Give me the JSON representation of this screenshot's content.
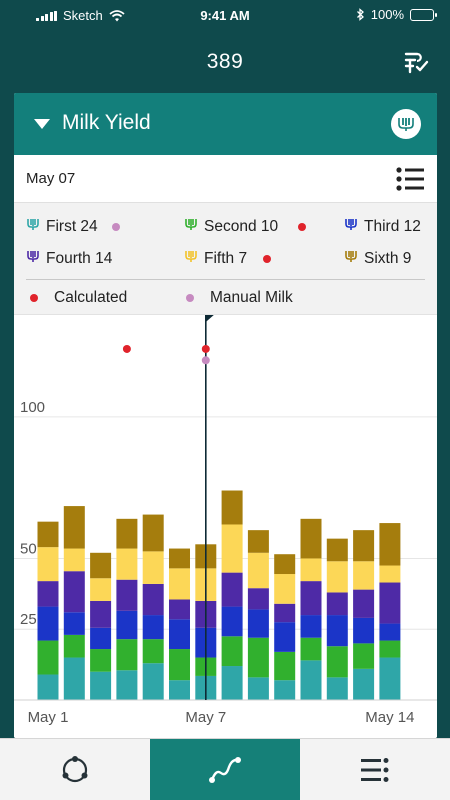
{
  "status_bar": {
    "carrier": "Sketch",
    "time": "9:41 AM",
    "battery": "100%"
  },
  "header": {
    "title": "389",
    "action_icon": "checklist-icon"
  },
  "card": {
    "title": "Milk Yield",
    "date": "May 07",
    "badge_icon": "milk-gauge-icon"
  },
  "legend": {
    "items": [
      {
        "label": "First 24",
        "color": "#2fa6a8",
        "dot_color": "#c68ac0"
      },
      {
        "label": "Second 10",
        "color": "#31b02e",
        "dot_color": "#e0232b"
      },
      {
        "label": "Third 12",
        "color": "#1b35c8"
      },
      {
        "label": "Fourth 14",
        "color": "#4e2aa6"
      },
      {
        "label": "Fifth 7",
        "color": "#fcd757",
        "dot_color": "#e0232b"
      },
      {
        "label": "Sixth 9",
        "color": "#a57d0d"
      }
    ],
    "calculated": {
      "label": "Calculated",
      "color": "#e0232b"
    },
    "manual": {
      "label": "Manual Milk",
      "color": "#c68ac0"
    }
  },
  "chart_data": {
    "type": "bar",
    "stacked": true,
    "ylim": [
      0,
      136
    ],
    "yticks": [
      25,
      50,
      100
    ],
    "ytick_labels": [
      "25",
      "50",
      "100"
    ],
    "xtick_labels": [
      "May 1",
      "May 7",
      "May 14"
    ],
    "xtick_positions": [
      0,
      6,
      13
    ],
    "selected_index": 6,
    "series": [
      {
        "name": "First",
        "color": "#2fa6a8",
        "values": [
          9,
          15,
          10,
          10.5,
          13,
          7,
          8.5,
          12,
          8,
          7,
          14,
          8,
          11,
          15
        ]
      },
      {
        "name": "Second",
        "color": "#31b02e",
        "values": [
          12,
          8,
          8,
          11,
          8.5,
          11,
          6.5,
          10.5,
          14,
          10,
          8,
          11,
          9,
          6
        ]
      },
      {
        "name": "Third",
        "color": "#1b35c8",
        "values": [
          12,
          8,
          7.5,
          10,
          8.5,
          10.5,
          10.5,
          10.5,
          10,
          10.5,
          8,
          11,
          9,
          6
        ]
      },
      {
        "name": "Fourth",
        "color": "#4e2aa6",
        "values": [
          9,
          14.5,
          9.5,
          11,
          11,
          7,
          9.5,
          12,
          7.5,
          6.5,
          12,
          8,
          10,
          14.5
        ]
      },
      {
        "name": "Fifth",
        "color": "#fcd757",
        "values": [
          12,
          8,
          8,
          11,
          11.5,
          11,
          11.5,
          17,
          12.5,
          10.5,
          8,
          11,
          10,
          6
        ]
      },
      {
        "name": "Sixth",
        "color": "#a57d0d",
        "values": [
          9,
          15,
          9,
          10.5,
          13,
          7,
          8.5,
          12,
          8,
          7,
          14,
          8,
          11,
          15
        ]
      }
    ],
    "calculated_points": [
      {
        "index": 3,
        "value": 124
      },
      {
        "index": 6,
        "value": 124
      }
    ],
    "manual_points": [
      {
        "index": 6,
        "value": 120
      }
    ]
  },
  "bottom_nav": {
    "items": [
      {
        "name": "cycle",
        "icon": "cycle-icon"
      },
      {
        "name": "trend",
        "icon": "trend-icon",
        "active": true
      },
      {
        "name": "menu",
        "icon": "list-menu-icon"
      }
    ]
  }
}
